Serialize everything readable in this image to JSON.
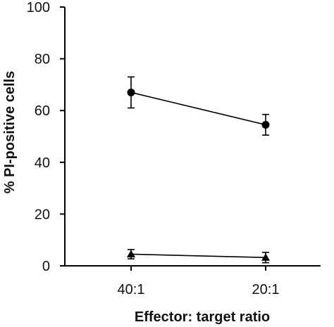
{
  "chart_data": {
    "type": "line",
    "categories": [
      "40:1",
      "20:1"
    ],
    "xlabel": "Effector: target ratio",
    "ylabel": "% PI-positive cells",
    "ylim": [
      0,
      100
    ],
    "yticks": [
      0,
      20,
      40,
      60,
      80,
      100
    ],
    "grid": false,
    "legend": "none",
    "series": [
      {
        "marker": "circle",
        "values": [
          67,
          54.5
        ],
        "errors": [
          6,
          4
        ],
        "color": "#000000"
      },
      {
        "marker": "triangle",
        "values": [
          4.5,
          3.2
        ],
        "errors": [
          1.8,
          2.0
        ],
        "color": "#000000"
      }
    ]
  }
}
